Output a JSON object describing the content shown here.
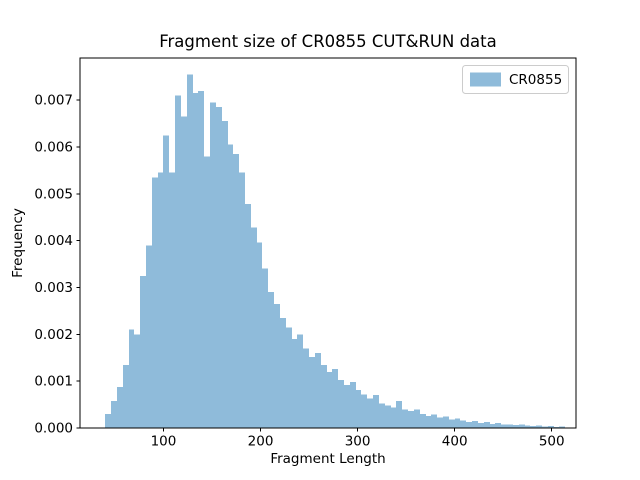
{
  "chart_data": {
    "type": "bar",
    "subtype": "histogram",
    "title": "Fragment size of CR0855 CUT&RUN data",
    "xlabel": "Fragment Length",
    "ylabel": "Frequency",
    "legend": {
      "label": "CR0855",
      "position": "upper right"
    },
    "bar_color": "#8fbbda",
    "background_color": "#ffffff",
    "grid": false,
    "bin_start": 40,
    "bin_width": 6,
    "values": [
      0.0003,
      0.00058,
      0.00088,
      0.00135,
      0.0021,
      0.002,
      0.00325,
      0.0039,
      0.00535,
      0.00545,
      0.00625,
      0.00545,
      0.0071,
      0.00665,
      0.00755,
      0.00715,
      0.0072,
      0.0058,
      0.00695,
      0.00685,
      0.00655,
      0.00605,
      0.00585,
      0.00545,
      0.00478,
      0.00428,
      0.00396,
      0.00341,
      0.0029,
      0.00265,
      0.00235,
      0.00215,
      0.0019,
      0.002,
      0.0017,
      0.00152,
      0.0016,
      0.00134,
      0.0012,
      0.00126,
      0.00102,
      0.00092,
      0.00098,
      0.00081,
      0.00072,
      0.00063,
      0.0007,
      0.00052,
      0.00048,
      0.00044,
      0.00058,
      0.0004,
      0.00036,
      0.0004,
      0.0003,
      0.00026,
      0.00029,
      0.00022,
      0.00025,
      0.00018,
      0.0002,
      0.00016,
      0.00013,
      0.00015,
      0.00011,
      0.00013,
      9e-05,
      0.00011,
      7e-05,
      8e-05,
      6e-05,
      7e-05,
      5e-05,
      4e-05,
      5e-05,
      3e-05,
      4e-05,
      2.5e-05,
      3e-05
    ],
    "xlim": [
      14,
      525
    ],
    "ylim": [
      0,
      0.0079
    ],
    "xticks": [
      100,
      200,
      300,
      400,
      500
    ],
    "ytick_values": [
      0,
      0.001,
      0.002,
      0.003,
      0.004,
      0.005,
      0.006,
      0.007
    ],
    "ytick_labels": [
      "0.000",
      "0.001",
      "0.002",
      "0.003",
      "0.004",
      "0.005",
      "0.006",
      "0.007"
    ]
  }
}
